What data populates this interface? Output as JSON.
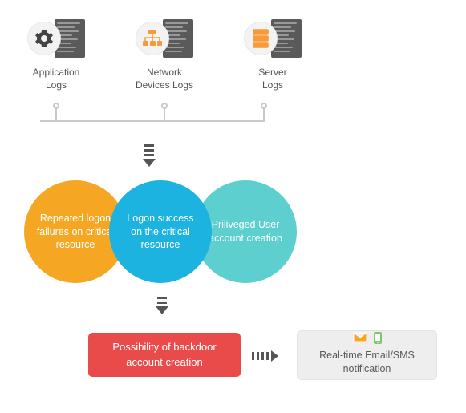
{
  "sources": [
    {
      "label": "Application\nLogs",
      "type": "gear"
    },
    {
      "label": "Network\nDevices Logs",
      "type": "network"
    },
    {
      "label": "Server\nLogs",
      "type": "server"
    }
  ],
  "venn": {
    "circles": [
      {
        "label": "Repeated logon failures on critical resource",
        "color": "#f5a623"
      },
      {
        "label": "Logon success on the critical resource",
        "color": "#1cb3e0"
      },
      {
        "label": "Priliveged User account creation",
        "color": "#5ecfcf"
      }
    ]
  },
  "result": {
    "label": "Possibility of backdoor account creation",
    "color": "#e94b4b"
  },
  "notify": {
    "label": "Real-time Email/SMS notification",
    "email_icon_color": "#f5a623",
    "phone_icon_color": "#7dc96d",
    "bg": "#eeeeee"
  },
  "arrow_color": "#555555",
  "rail_color": "#c9c9c9",
  "label_color": "#555555"
}
